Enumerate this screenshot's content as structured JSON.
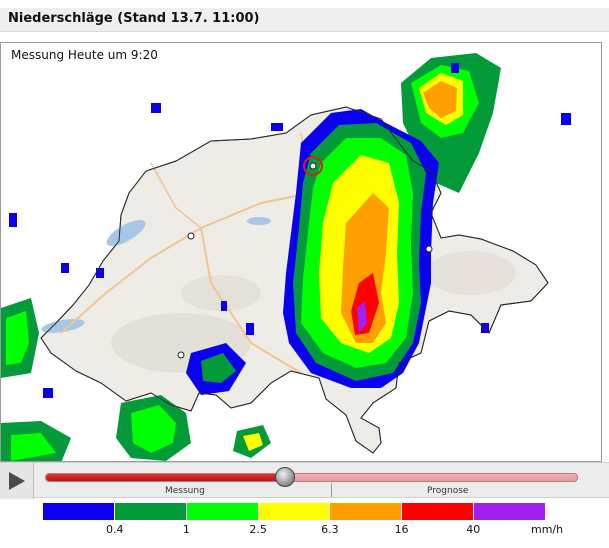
{
  "header": {
    "title": "Niederschläge (Stand 13.7. 11:00)"
  },
  "map": {
    "measure_label": "Messung Heute um 9:20",
    "marker_icon": "radar-station-marker"
  },
  "controls": {
    "play_icon": "play-icon",
    "segment_measurement": "Messung",
    "segment_forecast": "Prognose",
    "progress_fraction": 0.45
  },
  "legend": {
    "colors": [
      "#0a00f0",
      "#039a3a",
      "#00ff00",
      "#ffff00",
      "#ffa000",
      "#ff0000",
      "#a020f0"
    ],
    "ticks": [
      "0.4",
      "1",
      "2.5",
      "6.3",
      "16",
      "40"
    ],
    "unit": "mm/h"
  }
}
